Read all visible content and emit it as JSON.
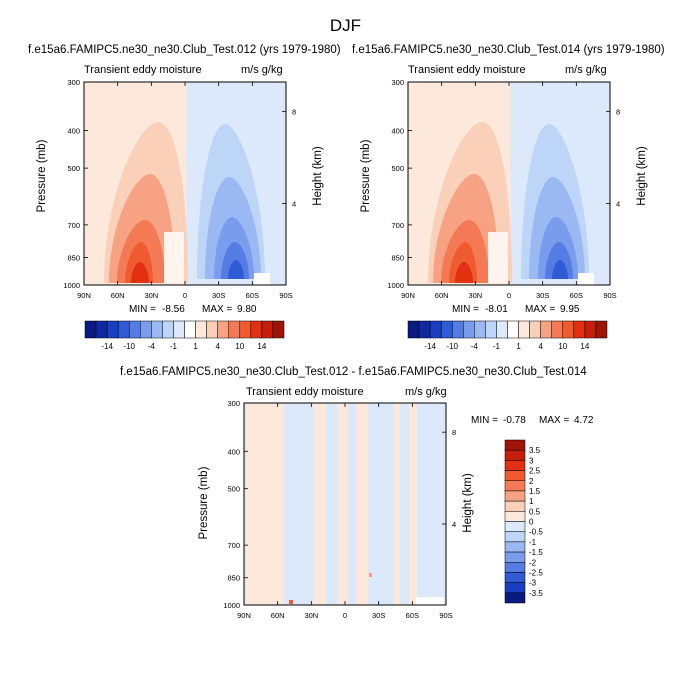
{
  "page_title": "DJF",
  "colors": {
    "warm": [
      "#fde9dc",
      "#fbd0b9",
      "#f7a283",
      "#f47a55",
      "#ef5a2f",
      "#e23010",
      "#c41f0a",
      "#9e1507"
    ],
    "cool": [
      "#dce9fb",
      "#bdd6f8",
      "#9ab9f2",
      "#7a9cec",
      "#547ce3",
      "#2f5bd6",
      "#1a3fc3",
      "#0f2aa0",
      "#0a1a82"
    ]
  },
  "colorbar_top": {
    "labels": [
      "-14",
      "-10",
      "-4",
      "-1",
      "1",
      "4",
      "10",
      "14"
    ],
    "colors": [
      "#0a1a82",
      "#0f2aa0",
      "#1a3fc3",
      "#2f5bd6",
      "#547ce3",
      "#7a9cec",
      "#9ab9f2",
      "#bdd6f8",
      "#dce9fb",
      "#ffffff",
      "#fde9dc",
      "#fbd0b9",
      "#f7a283",
      "#f47a55",
      "#ef5a2f",
      "#e23010",
      "#c41f0a",
      "#9e1507"
    ]
  },
  "colorbar_diff": {
    "labels": [
      "3.5",
      "3",
      "2.5",
      "2",
      "1.5",
      "1",
      "0.5",
      "0",
      "-0.5",
      "-1",
      "-1.5",
      "-2",
      "-2.5",
      "-3",
      "-3.5"
    ],
    "colors": [
      "#9e1507",
      "#c41f0a",
      "#e23010",
      "#ef5a2f",
      "#f47a55",
      "#f7a283",
      "#fbd0b9",
      "#fde9dc",
      "#dce9fb",
      "#bdd6f8",
      "#9ab9f2",
      "#7a9cec",
      "#547ce3",
      "#2f5bd6",
      "#1a3fc3",
      "#0a1a82"
    ]
  },
  "chart_data": [
    {
      "type": "heatmap",
      "title": "f.e15a6.FAMIPC5.ne30_ne30.Club_Test.012 (yrs 1979-1980)",
      "left_subtitle": "Transient eddy moisture",
      "right_subtitle": "m/s g/kg",
      "xlabel": "",
      "ylabel": "Pressure (mb)",
      "y2label": "Height (km)",
      "x_ticks": [
        "90N",
        "60N",
        "30N",
        "0",
        "30S",
        "60S",
        "90S"
      ],
      "y_ticks": [
        "300",
        "400",
        "500",
        "700",
        "850",
        "1000"
      ],
      "y_scale": "log",
      "ylim": [
        1000,
        300
      ],
      "y2_ticks": [
        "8",
        "4"
      ],
      "min": "-8.56",
      "max": "9.80",
      "min_label": "MIN =",
      "max_label": "MAX ="
    },
    {
      "type": "heatmap",
      "title": "f.e15a6.FAMIPC5.ne30_ne30.Club_Test.014 (yrs 1979-1980)",
      "left_subtitle": "Transient eddy moisture",
      "right_subtitle": "m/s g/kg",
      "xlabel": "",
      "ylabel": "Pressure (mb)",
      "y2label": "Height (km)",
      "x_ticks": [
        "90N",
        "60N",
        "30N",
        "0",
        "30S",
        "60S",
        "90S"
      ],
      "y_ticks": [
        "300",
        "400",
        "500",
        "700",
        "850",
        "1000"
      ],
      "y_scale": "log",
      "ylim": [
        1000,
        300
      ],
      "y2_ticks": [
        "8",
        "4"
      ],
      "min": "-8.01",
      "max": "9.95",
      "min_label": "MIN =",
      "max_label": "MAX ="
    },
    {
      "type": "heatmap",
      "title": "f.e15a6.FAMIPC5.ne30_ne30.Club_Test.012 - f.e15a6.FAMIPC5.ne30_ne30.Club_Test.014",
      "left_subtitle": "Transient eddy moisture",
      "right_subtitle": "m/s g/kg",
      "xlabel": "",
      "ylabel": "Pressure (mb)",
      "y2label": "Height (km)",
      "x_ticks": [
        "90N",
        "60N",
        "30N",
        "0",
        "30S",
        "60S",
        "90S"
      ],
      "y_ticks": [
        "300",
        "400",
        "500",
        "700",
        "850",
        "1000"
      ],
      "y_scale": "log",
      "ylim": [
        1000,
        300
      ],
      "y2_ticks": [
        "8",
        "4"
      ],
      "min": "-0.78",
      "max": "4.72",
      "min_label": "MIN =",
      "max_label": "MAX ="
    }
  ]
}
